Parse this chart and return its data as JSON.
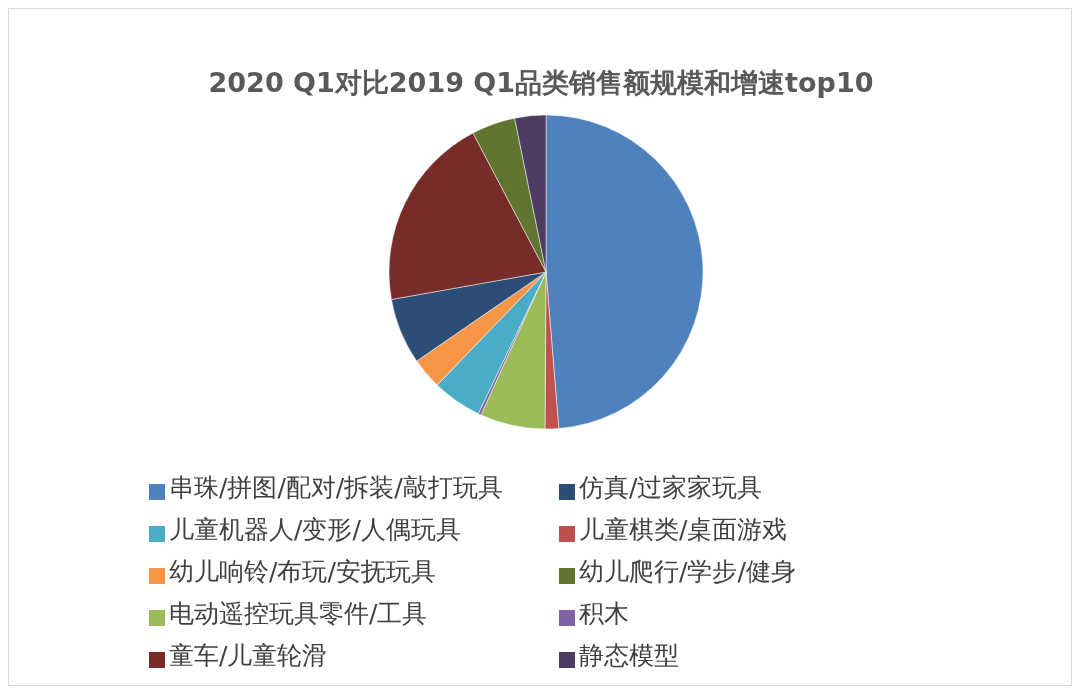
{
  "chart_data": {
    "type": "pie",
    "title": "2020 Q1对比2019 Q1品类销售额规模和增速top10",
    "categories": [
      "串珠/拼图/配对/拆装/敲打玩具",
      "儿童棋类/桌面游戏",
      "电动遥控玩具零件/工具",
      "积木",
      "儿童机器人/变形/人偶玩具",
      "幼儿响铃/布玩/安抚玩具",
      "仿真/过家家玩具",
      "童车/儿童轮滑",
      "幼儿爬行/学步/健身",
      "静态模型"
    ],
    "values": [
      48.7,
      1.4,
      6.7,
      0.3,
      5.1,
      3.2,
      6.8,
      20.1,
      4.5,
      3.2
    ],
    "colors": [
      "#4f81bd",
      "#c0504d",
      "#9bbb59",
      "#8064a2",
      "#4bacc6",
      "#f79646",
      "#2c4d75",
      "#772c2a",
      "#5f7530",
      "#4d3b62"
    ],
    "legend": "bottom"
  }
}
